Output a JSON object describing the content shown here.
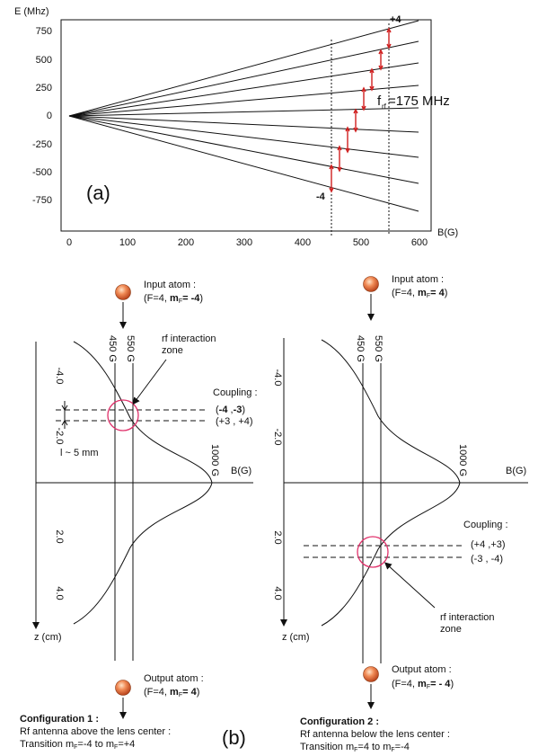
{
  "panel_a": {
    "ylabel": "E (Mhz)",
    "xlabel": "B(G)",
    "panel_label": "(a)",
    "yticks": [
      "750",
      "500",
      "250",
      "0",
      "-250",
      "-500",
      "-750"
    ],
    "xticks": [
      "0",
      "100",
      "200",
      "300",
      "400",
      "500",
      "600"
    ],
    "label_top": "+4",
    "label_bottom": "-4",
    "rf_label_f": "f",
    "rf_label_sub": "rf",
    "rf_label_rest": "=175 MHz"
  },
  "panel_b": {
    "panel_label": "(b)",
    "left": {
      "input_title": "Input atom :",
      "input_state_prefix": "(F=4, ",
      "input_state_bold": "m",
      "input_state_sub": "F",
      "input_state_bold2": "= -4",
      "input_state_suffix": ")",
      "rf_zone_1": "rf interaction",
      "rf_zone_2": "zone",
      "coupling_title": "Coupling :",
      "coupling_1_a": "-4",
      "coupling_1_b": "-3",
      "coupling_2": "(+3 , +4)",
      "length_label": "l ~ 5 mm",
      "field_450": "450 G",
      "field_550": "550 G",
      "field_1000": "1000 G",
      "baxis": "B(G)",
      "zaxis": "z (cm)",
      "zticks": [
        "-4.0",
        "-2.0",
        "2.0",
        "4.0"
      ],
      "output_title": "Output atom :",
      "output_state_prefix": "(F=4, ",
      "output_state_bold": "m",
      "output_state_sub": "F",
      "output_state_bold2": "= 4",
      "output_state_suffix": ")",
      "config_title": "Configuration 1 :",
      "config_line1": "Rf antenna above the lens center :",
      "config_line2_a": "Transition m",
      "config_line2_sub1": "F",
      "config_line2_b": "=-4 to m",
      "config_line2_sub2": "F",
      "config_line2_c": "=+4"
    },
    "right": {
      "input_title": "Input atom :",
      "input_state_prefix": "(F=4, ",
      "input_state_bold": "m",
      "input_state_sub": "F",
      "input_state_bold2": "= 4",
      "input_state_suffix": ")",
      "rf_zone_1": "rf interaction",
      "rf_zone_2": "zone",
      "coupling_title": "Coupling :",
      "coupling_1": "(+4 ,+3)",
      "coupling_2": "(-3 , -4)",
      "field_450": "450 G",
      "field_550": "550 G",
      "field_1000": "1000 G",
      "baxis": "B(G)",
      "zaxis": "z (cm)",
      "zticks": [
        "-4.0",
        "-2.0",
        "2.0",
        "4.0"
      ],
      "output_title": "Output atom :",
      "output_state_prefix": "(F=4, ",
      "output_state_bold": "m",
      "output_state_sub": "F",
      "output_state_bold2": "= - 4",
      "output_state_suffix": ")",
      "config_title": "Configuration 2 :",
      "config_line1": "Rf antenna below the lens center :",
      "config_line2_a": "Transition m",
      "config_line2_sub1": "F",
      "config_line2_b": "=4 to m",
      "config_line2_sub2": "F",
      "config_line2_c": "=-4"
    }
  },
  "colors": {
    "rf_arrow": "#d02020",
    "ring": "#e0306a",
    "atom": "#e06a3a"
  }
}
